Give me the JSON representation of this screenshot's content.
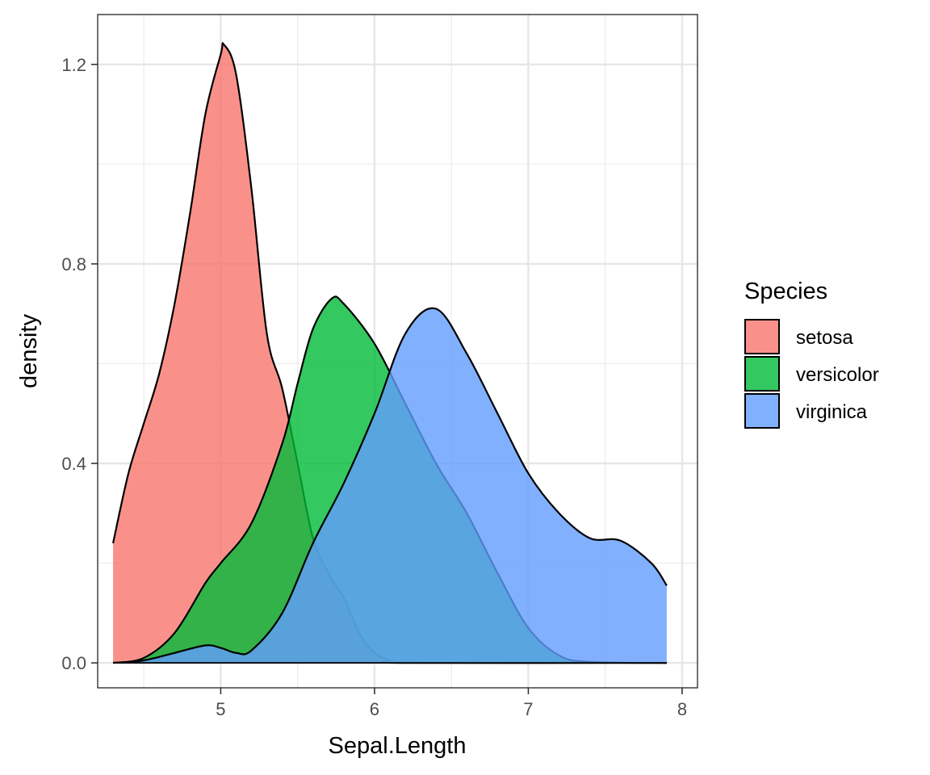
{
  "chart_data": {
    "type": "area",
    "subtype": "density",
    "xlabel": "Sepal.Length",
    "ylabel": "density",
    "xlim": [
      4.2,
      8.1
    ],
    "ylim": [
      -0.05,
      1.3
    ],
    "x_ticks": [
      5,
      6,
      7,
      8
    ],
    "x_tick_labels": [
      "5",
      "6",
      "7",
      "8"
    ],
    "y_ticks": [
      0.0,
      0.4,
      0.8,
      1.2
    ],
    "y_tick_labels": [
      "0.0",
      "0.4",
      "0.8",
      "1.2"
    ],
    "grid": true,
    "legend": {
      "title": "Species",
      "placement": "right"
    },
    "series": [
      {
        "name": "setosa",
        "color": "#F8766D",
        "x": [
          4.3,
          4.4,
          4.5,
          4.6,
          4.7,
          4.8,
          4.9,
          5.0,
          5.02,
          5.1,
          5.2,
          5.3,
          5.4,
          5.5,
          5.6,
          5.7,
          5.8,
          5.9,
          6.0,
          6.1,
          6.2,
          7.9
        ],
        "y": [
          0.24,
          0.38,
          0.48,
          0.58,
          0.72,
          0.9,
          1.1,
          1.22,
          1.24,
          1.18,
          0.95,
          0.66,
          0.55,
          0.4,
          0.25,
          0.18,
          0.13,
          0.06,
          0.02,
          0.005,
          0.0,
          0.0
        ]
      },
      {
        "name": "versicolor",
        "color": "#00BA38",
        "x": [
          4.3,
          4.5,
          4.7,
          4.9,
          5.0,
          5.2,
          5.4,
          5.5,
          5.6,
          5.72,
          5.8,
          6.0,
          6.2,
          6.4,
          6.6,
          6.8,
          7.0,
          7.2,
          7.4,
          7.9
        ],
        "y": [
          0.0,
          0.01,
          0.06,
          0.16,
          0.2,
          0.28,
          0.44,
          0.56,
          0.67,
          0.73,
          0.72,
          0.64,
          0.52,
          0.4,
          0.3,
          0.18,
          0.07,
          0.015,
          0.002,
          0.0
        ]
      },
      {
        "name": "virginica",
        "color": "#619CFF",
        "x": [
          4.3,
          4.5,
          4.7,
          4.9,
          5.0,
          5.1,
          5.2,
          5.4,
          5.6,
          5.8,
          6.0,
          6.2,
          6.4,
          6.6,
          6.8,
          7.0,
          7.2,
          7.4,
          7.6,
          7.8,
          7.9
        ],
        "y": [
          0.0,
          0.005,
          0.02,
          0.035,
          0.03,
          0.02,
          0.025,
          0.1,
          0.24,
          0.36,
          0.5,
          0.66,
          0.71,
          0.62,
          0.5,
          0.38,
          0.3,
          0.25,
          0.245,
          0.2,
          0.155
        ]
      }
    ]
  }
}
